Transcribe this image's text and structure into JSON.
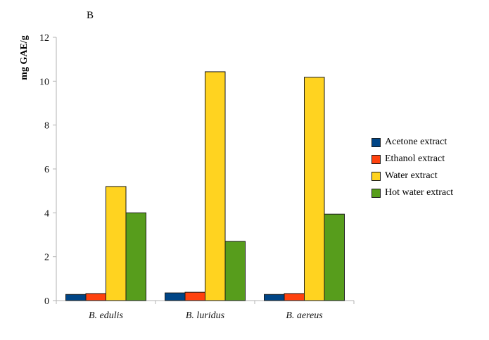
{
  "panel_label": "B",
  "chart_data": {
    "type": "bar",
    "ylabel": "mg GAE/g",
    "categories": [
      "B. edulis",
      "B. luridus",
      "B. aereus"
    ],
    "series": [
      {
        "name": "Acetone extract",
        "color": "#004586",
        "values": [
          0.28,
          0.35,
          0.28
        ]
      },
      {
        "name": "Ethanol extract",
        "color": "#ff420e",
        "values": [
          0.32,
          0.38,
          0.32
        ]
      },
      {
        "name": "Water extract",
        "color": "#ffd320",
        "values": [
          5.2,
          10.43,
          10.18
        ]
      },
      {
        "name": "Hot water extract",
        "color": "#579d1c",
        "values": [
          4.0,
          2.7,
          3.94
        ]
      }
    ],
    "ylim": [
      0,
      12
    ],
    "yticks": [
      0,
      2,
      4,
      6,
      8,
      10,
      12
    ],
    "legend_position": "right",
    "grid": false
  }
}
